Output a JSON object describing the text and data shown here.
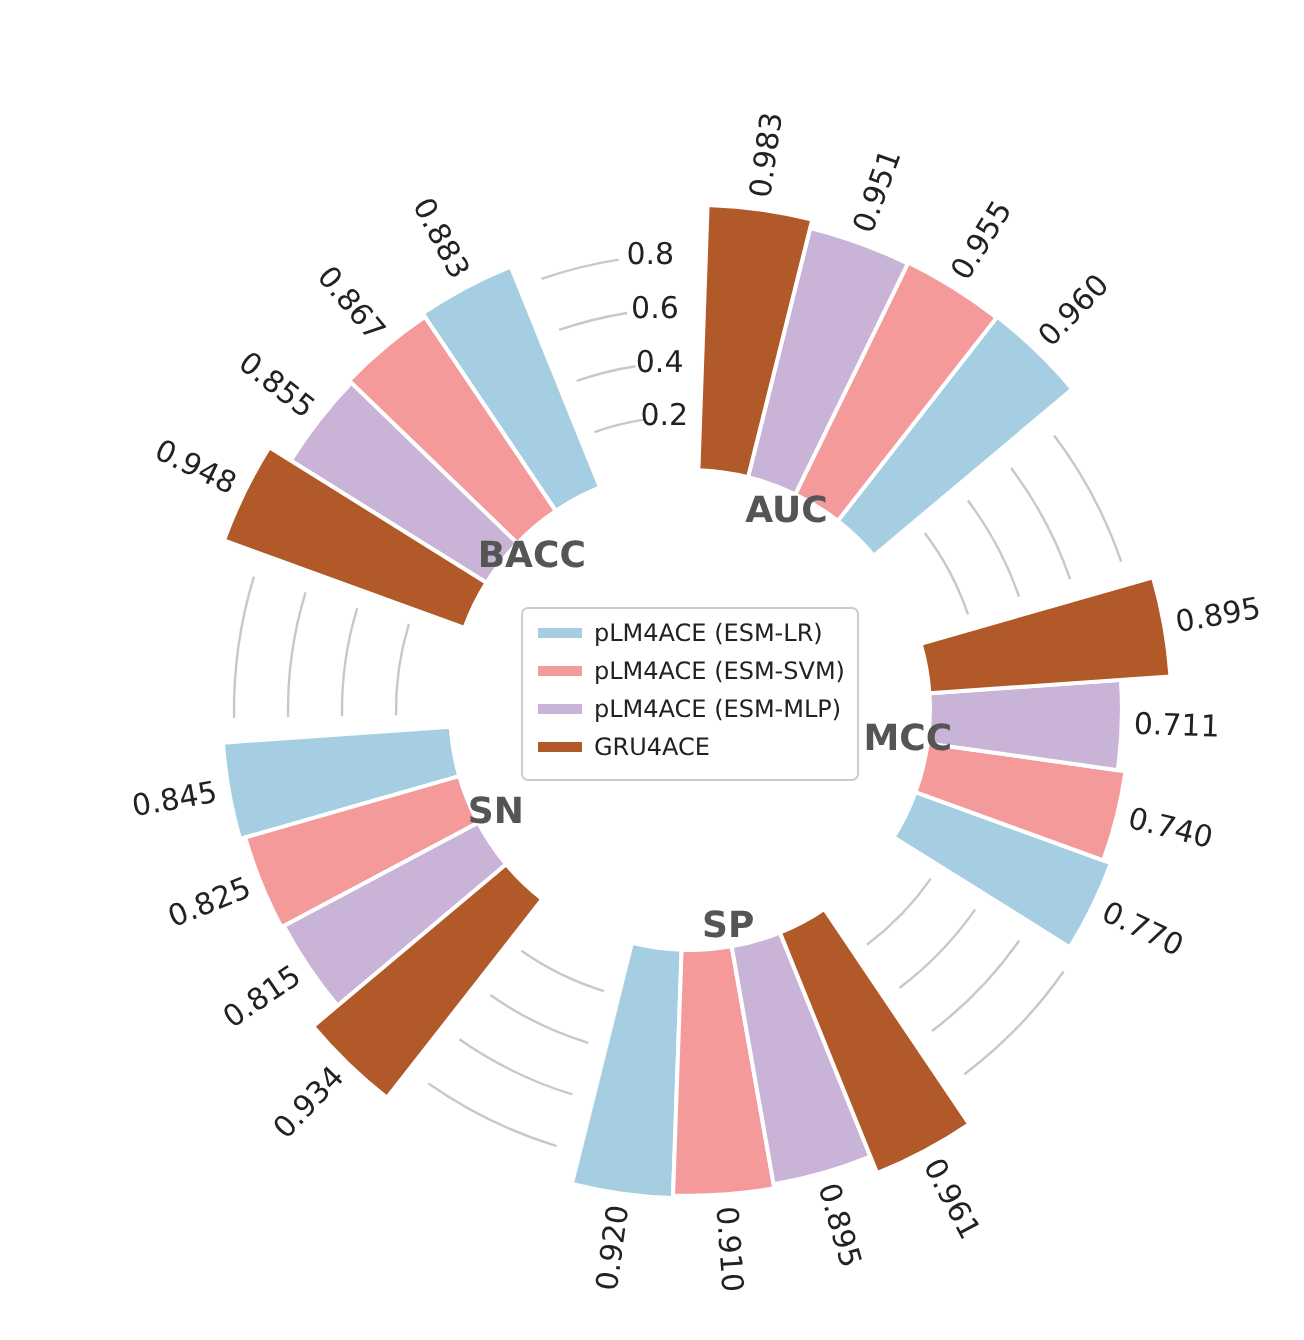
{
  "chart_data": {
    "type": "other",
    "categories": [
      "AUC",
      "MCC",
      "SP",
      "SN",
      "BACC"
    ],
    "series": [
      {
        "name": "pLM4ACE (ESM-LR)",
        "color": "#a6cee3",
        "values": [
          0.96,
          0.77,
          0.92,
          0.845,
          0.883
        ],
        "value_labels": [
          "0.960",
          "0.770",
          "0.920",
          "0.845",
          "0.883"
        ]
      },
      {
        "name": "pLM4ACE (ESM-SVM)",
        "color": "#f49a9a",
        "values": [
          0.955,
          0.74,
          0.91,
          0.825,
          0.867
        ],
        "value_labels": [
          "0.955",
          "0.740",
          "0.910",
          "0.825",
          "0.867"
        ]
      },
      {
        "name": "pLM4ACE (ESM-MLP)",
        "color": "#c9b3d7",
        "values": [
          0.951,
          0.711,
          0.895,
          0.815,
          0.855
        ],
        "value_labels": [
          "0.951",
          "0.711",
          "0.895",
          "0.815",
          "0.855"
        ]
      },
      {
        "name": "GRU4ACE",
        "color": "#b15928",
        "values": [
          0.983,
          0.895,
          0.961,
          0.934,
          0.948
        ],
        "value_labels": [
          "0.983",
          "0.895",
          "0.961",
          "0.934",
          "0.948"
        ]
      }
    ],
    "annotations": [
      "0.2",
      "0.4",
      "0.6",
      "0.8"
    ],
    "legend": "center"
  }
}
